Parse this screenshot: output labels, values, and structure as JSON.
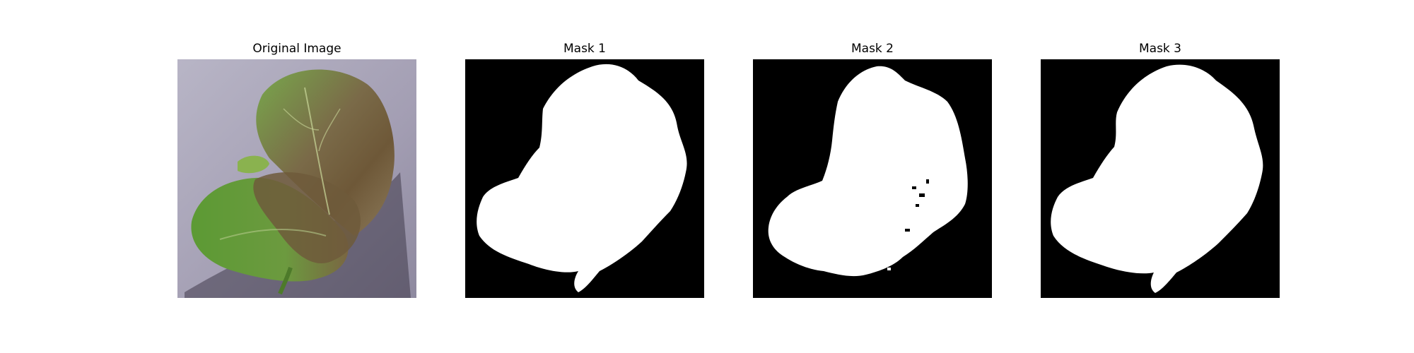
{
  "panels": [
    {
      "title": "Original Image",
      "kind": "photo"
    },
    {
      "title": "Mask 1",
      "kind": "mask"
    },
    {
      "title": "Mask 2",
      "kind": "mask"
    },
    {
      "title": "Mask 3",
      "kind": "mask"
    }
  ],
  "colors": {
    "mask_background": "#000000",
    "mask_foreground": "#ffffff",
    "photo_background": "#a7a2b5",
    "leaf_green": "#5e9a3a",
    "leaf_brown": "#7b6446"
  }
}
